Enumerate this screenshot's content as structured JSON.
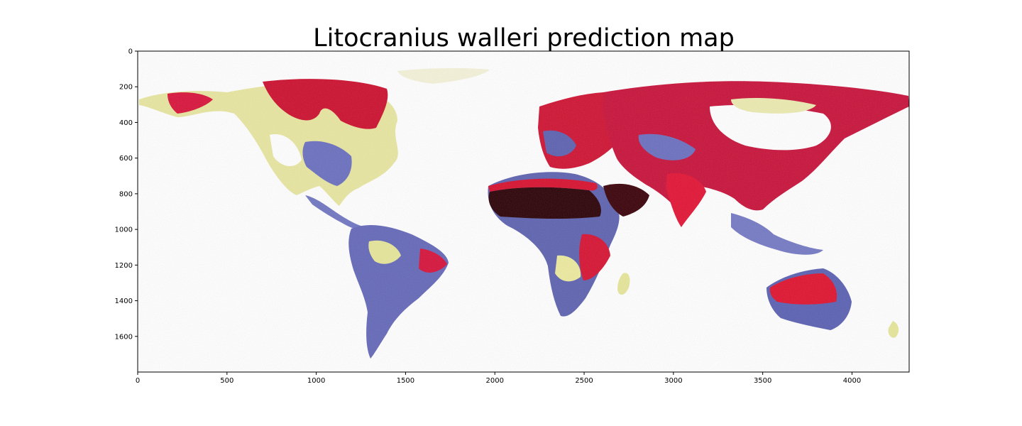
{
  "title": "Litocranius walleri prediction map",
  "chart_data": {
    "type": "heatmap",
    "title": "Litocranius walleri prediction map",
    "xlabel": "",
    "ylabel": "",
    "xlim": [
      0,
      4320
    ],
    "ylim": [
      1800,
      0
    ],
    "x_ticks": [
      0,
      500,
      1000,
      1500,
      2000,
      2500,
      3000,
      3500,
      4000
    ],
    "y_ticks": [
      0,
      200,
      400,
      600,
      800,
      1000,
      1200,
      1400,
      1600
    ],
    "grid": false,
    "colormap": [
      "#000000",
      "#8b0018",
      "#e8102e",
      "#5a5fb0",
      "#ecec9a",
      "#ffffff"
    ],
    "colors": {
      "high": "#1a0000",
      "medium_high": "#e01030",
      "medium": "#5a5fb0",
      "low": "#e6e69a",
      "none": "#ffffff"
    }
  }
}
